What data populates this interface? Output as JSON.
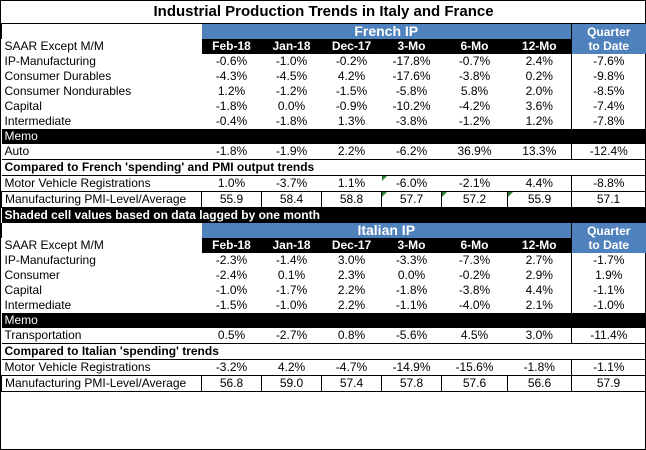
{
  "title": "Industrial Production Trends in Italy and France",
  "french": {
    "section_title": "French IP",
    "qtd_line1": "Quarter",
    "qtd_line2": "to Date",
    "header_label": "SAAR Except M/M",
    "columns": [
      "Feb-18",
      "Jan-18",
      "Dec-17",
      "3-Mo",
      "6-Mo",
      "12-Mo"
    ],
    "rows": [
      {
        "label": "IP-Manufacturing",
        "values": [
          "-0.6%",
          "-1.0%",
          "-0.2%",
          "-17.8%",
          "-0.7%",
          "2.4%",
          "-7.6%"
        ]
      },
      {
        "label": " Consumer Durables",
        "values": [
          "-4.3%",
          "-4.5%",
          "4.2%",
          "-17.6%",
          "-3.8%",
          "0.2%",
          "-9.8%"
        ]
      },
      {
        "label": " Consumer Nondurables",
        "values": [
          "1.2%",
          "-1.2%",
          "-1.5%",
          "-5.8%",
          "5.8%",
          "2.0%",
          "-8.5%"
        ]
      },
      {
        "label": " Capital",
        "values": [
          "-1.8%",
          "0.0%",
          "-0.9%",
          "-10.2%",
          "-4.2%",
          "3.6%",
          "-7.4%"
        ]
      },
      {
        "label": " Intermediate",
        "values": [
          "-0.4%",
          "-1.8%",
          "1.3%",
          "-3.8%",
          "-1.2%",
          "1.2%",
          "-7.8%"
        ]
      }
    ],
    "memo_label": "Memo",
    "memo_row": {
      "label": " Auto",
      "values": [
        "-1.8%",
        "-1.9%",
        "2.2%",
        "-6.2%",
        "36.9%",
        "13.3%",
        "-12.4%"
      ]
    },
    "compared_label": "Compared to French 'spending' and PMI output trends",
    "compared_rows": [
      {
        "label": "Motor Vehicle Registrations",
        "values": [
          "1.0%",
          "-3.7%",
          "1.1%",
          "-6.0%",
          "-2.1%",
          "4.4%",
          "-8.8%"
        ]
      },
      {
        "label": "Manufacturing PMI-Level/Average",
        "values": [
          "55.9",
          "58.4",
          "58.8",
          "57.7",
          "57.2",
          "55.9",
          "57.1"
        ]
      }
    ],
    "shaded_note": "Shaded cell values based on data lagged by one month"
  },
  "italian": {
    "section_title": "Italian IP",
    "qtd_line1": "Quarter",
    "qtd_line2": "to Date",
    "header_label": "SAAR Except M/M",
    "columns": [
      "Feb-18",
      "Jan-18",
      "Dec-17",
      "3-Mo",
      "6-Mo",
      "12-Mo"
    ],
    "rows": [
      {
        "label": "IP-Manufacturing",
        "values": [
          "-2.3%",
          "-1.4%",
          "3.0%",
          "-3.3%",
          "-7.3%",
          "2.7%",
          "-1.7%"
        ]
      },
      {
        "label": " Consumer",
        "values": [
          "-2.4%",
          "0.1%",
          "2.3%",
          "0.0%",
          "-0.2%",
          "2.9%",
          "1.9%"
        ]
      },
      {
        "label": " Capital",
        "values": [
          "-1.0%",
          "-1.7%",
          "2.2%",
          "-1.8%",
          "-3.8%",
          "4.4%",
          "-1.1%"
        ]
      },
      {
        "label": " Intermediate",
        "values": [
          "-1.5%",
          "-1.0%",
          "2.2%",
          "-1.1%",
          "-4.0%",
          "2.1%",
          "-1.0%"
        ]
      }
    ],
    "memo_label": "Memo",
    "memo_row": {
      "label": "Transportation",
      "values": [
        "0.5%",
        "-2.7%",
        "0.8%",
        "-5.6%",
        "4.5%",
        "3.0%",
        "-11.4%"
      ]
    },
    "compared_label": "Compared to Italian 'spending' trends",
    "compared_rows": [
      {
        "label": "Motor Vehicle Registrations",
        "values": [
          "-3.2%",
          "4.2%",
          "-4.7%",
          "-14.9%",
          "-15.6%",
          "-1.8%",
          "-1.1%"
        ]
      },
      {
        "label": "Manufacturing PMI-Level/Average",
        "values": [
          "56.8",
          "59.0",
          "57.4",
          "57.8",
          "57.6",
          "56.6",
          "57.9"
        ]
      }
    ]
  },
  "colors": {
    "header_blue": "#4f81bd",
    "black_band": "#000000",
    "lag_marker": "#2e7d32"
  }
}
